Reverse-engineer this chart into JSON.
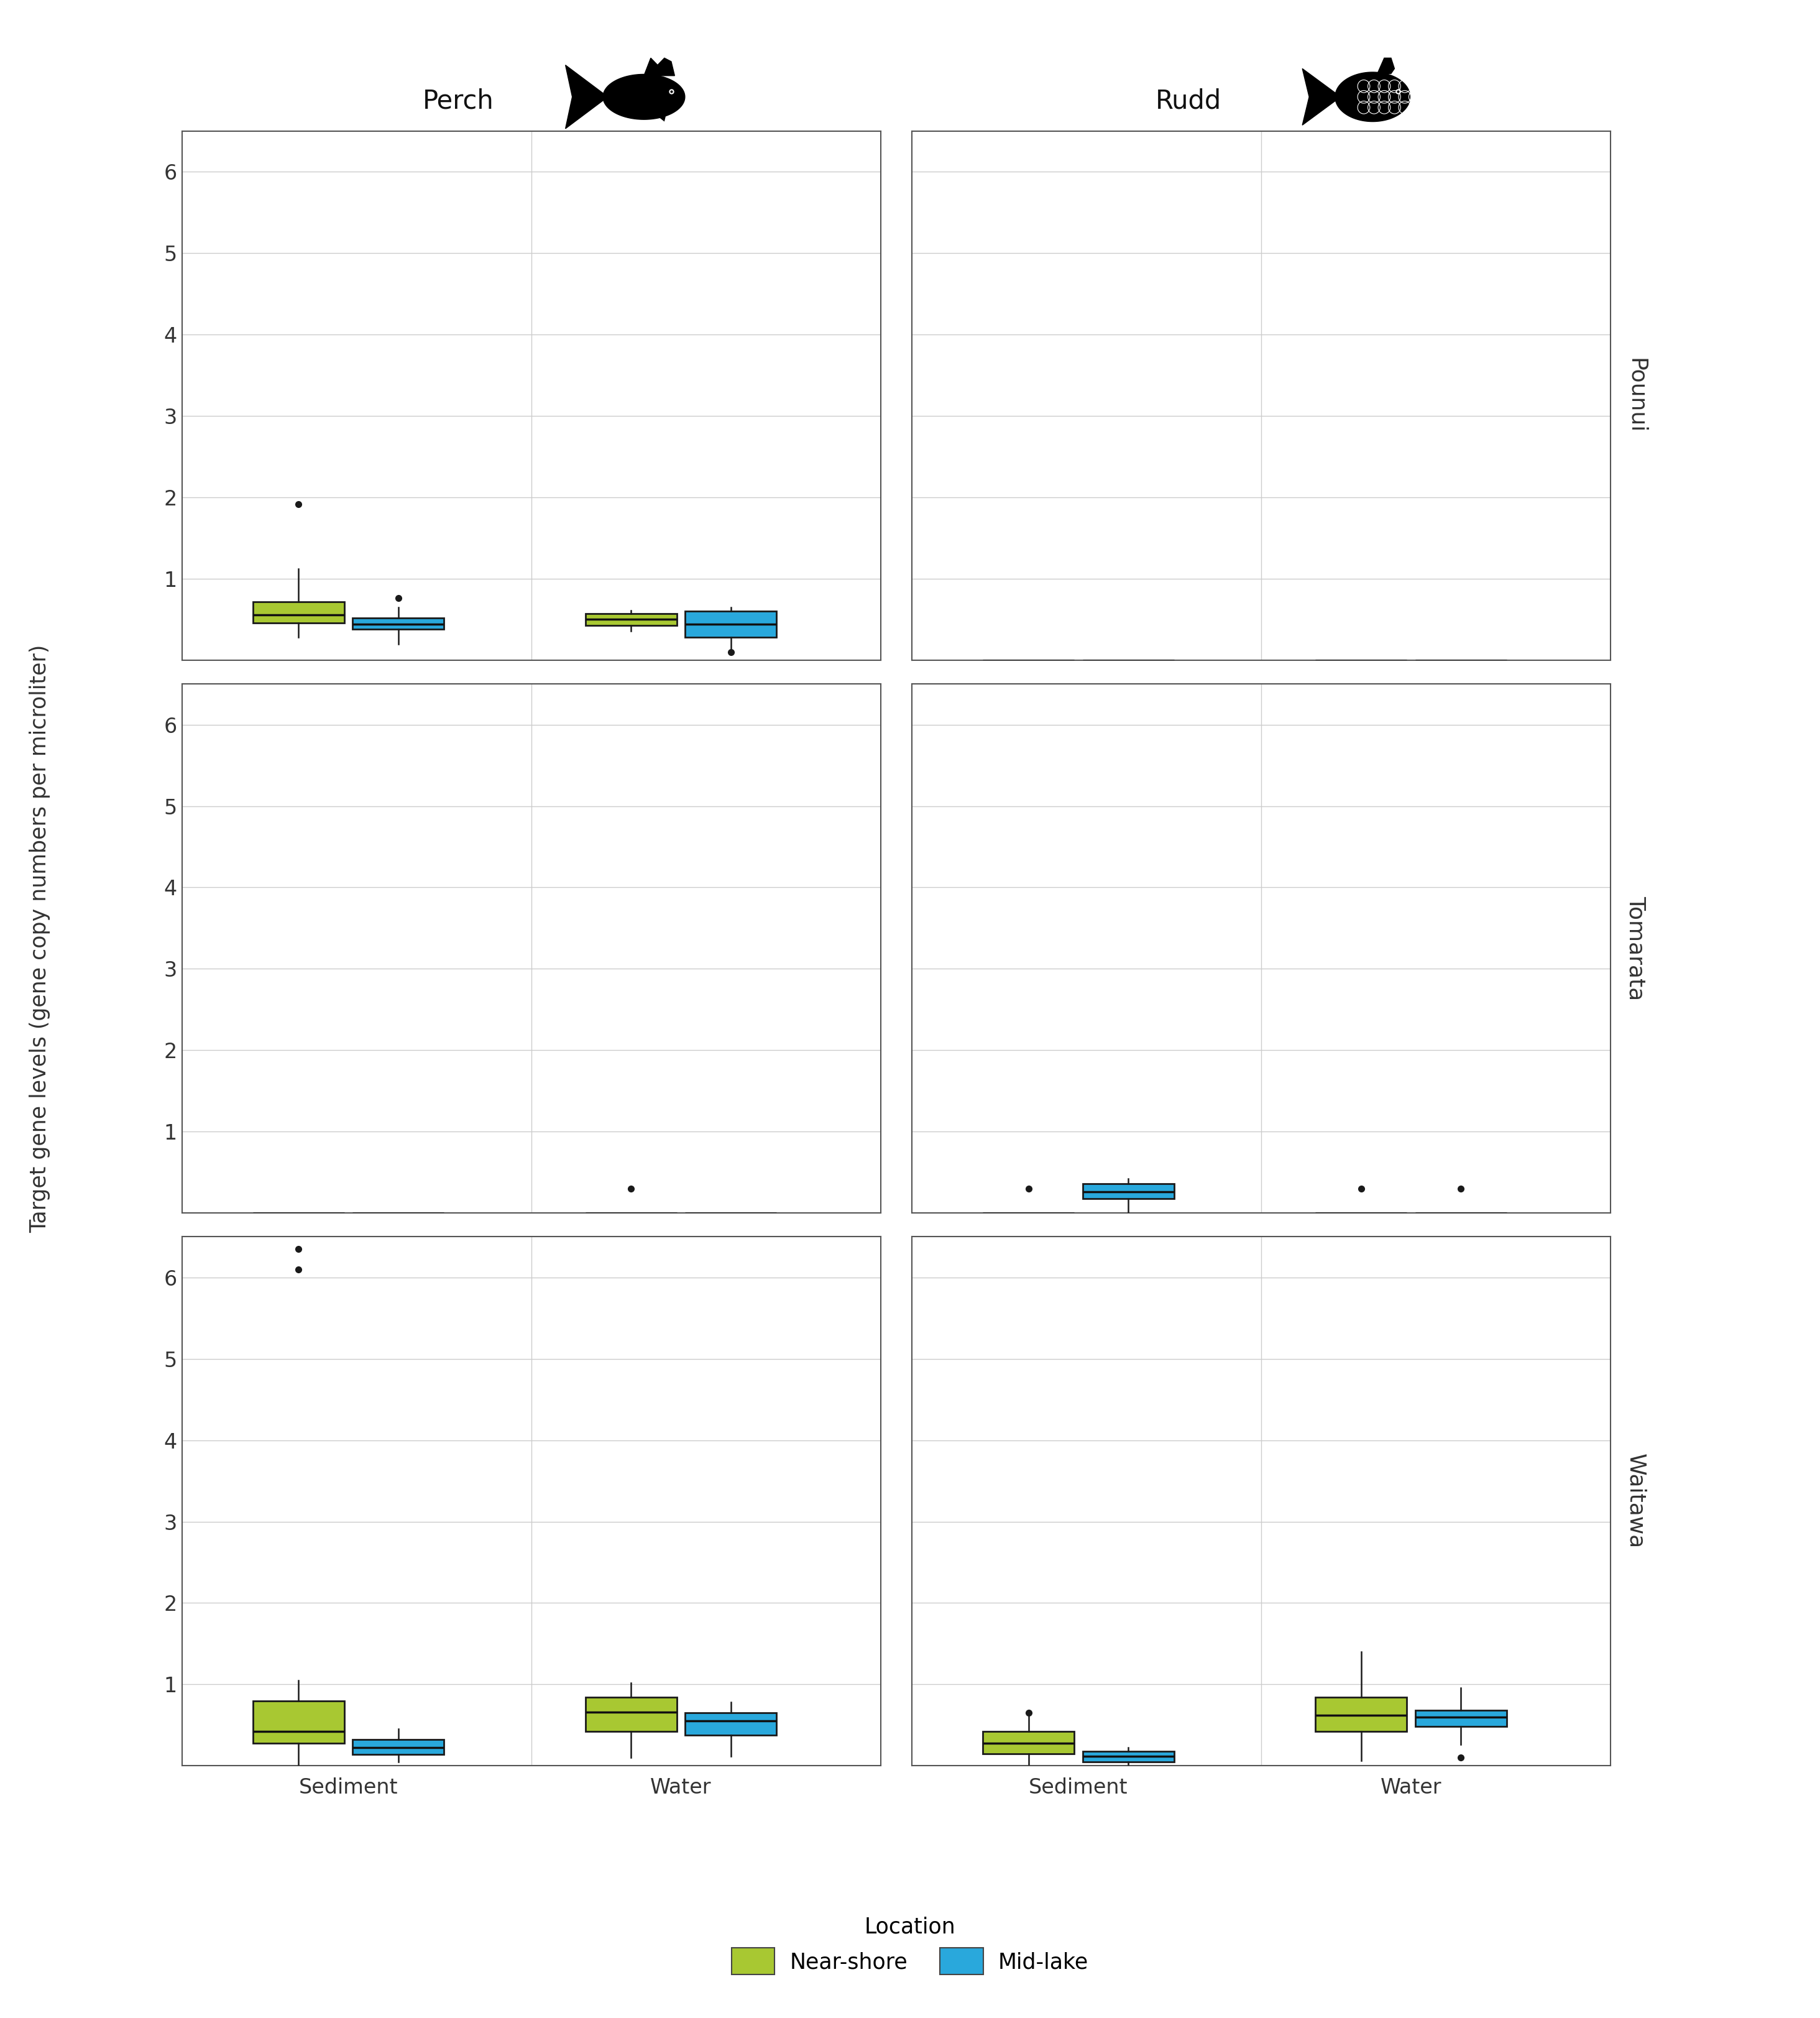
{
  "fish_species": [
    "Perch",
    "Rudd"
  ],
  "lakes": [
    "Pounui",
    "Tomarata",
    "Waitawa"
  ],
  "sample_types": [
    "Sediment",
    "Water"
  ],
  "locations": [
    "Near-shore",
    "Mid-lake"
  ],
  "location_colors": [
    "#a8c832",
    "#29a8dc"
  ],
  "ylabel": "Target gene levels (gene copy numbers per microliter)",
  "legend_title": "Location",
  "ylim": [
    0,
    6.5
  ],
  "yticks": [
    1,
    2,
    3,
    4,
    5,
    6
  ],
  "box_data": {
    "Perch": {
      "Pounui": {
        "Sediment": {
          "Near-shore": {
            "q1": 0.46,
            "median": 0.56,
            "q3": 0.72,
            "whislo": 0.28,
            "whishi": 1.12,
            "fliers": [
              1.92
            ]
          },
          "Mid-lake": {
            "q1": 0.38,
            "median": 0.44,
            "q3": 0.52,
            "whislo": 0.2,
            "whishi": 0.65,
            "fliers": [
              0.76
            ]
          }
        },
        "Water": {
          "Near-shore": {
            "q1": 0.43,
            "median": 0.5,
            "q3": 0.57,
            "whislo": 0.36,
            "whishi": 0.61,
            "fliers": []
          },
          "Mid-lake": {
            "q1": 0.28,
            "median": 0.44,
            "q3": 0.6,
            "whislo": 0.1,
            "whishi": 0.65,
            "fliers": [
              0.1
            ]
          }
        }
      },
      "Tomarata": {
        "Sediment": {
          "Near-shore": {
            "q1": 0.0,
            "median": 0.0,
            "q3": 0.0,
            "whislo": 0.0,
            "whishi": 0.0,
            "fliers": []
          },
          "Mid-lake": {
            "q1": 0.0,
            "median": 0.0,
            "q3": 0.0,
            "whislo": 0.0,
            "whishi": 0.0,
            "fliers": []
          }
        },
        "Water": {
          "Near-shore": {
            "q1": 0.0,
            "median": 0.0,
            "q3": 0.0,
            "whislo": 0.0,
            "whishi": 0.0,
            "fliers": [
              0.3
            ]
          },
          "Mid-lake": {
            "q1": 0.0,
            "median": 0.0,
            "q3": 0.0,
            "whislo": 0.0,
            "whishi": 0.0,
            "fliers": []
          }
        }
      },
      "Waitawa": {
        "Sediment": {
          "Near-shore": {
            "q1": 0.28,
            "median": 0.42,
            "q3": 0.8,
            "whislo": 0.0,
            "whishi": 1.05,
            "fliers": [
              6.35,
              6.1
            ]
          },
          "Mid-lake": {
            "q1": 0.14,
            "median": 0.22,
            "q3": 0.32,
            "whislo": 0.05,
            "whishi": 0.45,
            "fliers": []
          }
        },
        "Water": {
          "Near-shore": {
            "q1": 0.42,
            "median": 0.66,
            "q3": 0.84,
            "whislo": 0.1,
            "whishi": 1.02,
            "fliers": []
          },
          "Mid-lake": {
            "q1": 0.38,
            "median": 0.55,
            "q3": 0.65,
            "whislo": 0.12,
            "whishi": 0.78,
            "fliers": []
          }
        }
      }
    },
    "Rudd": {
      "Pounui": {
        "Sediment": {
          "Near-shore": {
            "q1": 0.0,
            "median": 0.0,
            "q3": 0.0,
            "whislo": 0.0,
            "whishi": 0.0,
            "fliers": []
          },
          "Mid-lake": {
            "q1": 0.0,
            "median": 0.0,
            "q3": 0.0,
            "whislo": 0.0,
            "whishi": 0.0,
            "fliers": []
          }
        },
        "Water": {
          "Near-shore": {
            "q1": 0.0,
            "median": 0.0,
            "q3": 0.0,
            "whislo": 0.0,
            "whishi": 0.0,
            "fliers": []
          },
          "Mid-lake": {
            "q1": 0.0,
            "median": 0.0,
            "q3": 0.0,
            "whislo": 0.0,
            "whishi": 0.0,
            "fliers": []
          }
        }
      },
      "Tomarata": {
        "Sediment": {
          "Near-shore": {
            "q1": 0.0,
            "median": 0.0,
            "q3": 0.0,
            "whislo": 0.0,
            "whishi": 0.0,
            "fliers": [
              0.3
            ]
          },
          "Mid-lake": {
            "q1": 0.18,
            "median": 0.26,
            "q3": 0.36,
            "whislo": 0.0,
            "whishi": 0.42,
            "fliers": []
          }
        },
        "Water": {
          "Near-shore": {
            "q1": 0.0,
            "median": 0.0,
            "q3": 0.0,
            "whislo": 0.0,
            "whishi": 0.0,
            "fliers": [
              0.3
            ]
          },
          "Mid-lake": {
            "q1": 0.0,
            "median": 0.0,
            "q3": 0.0,
            "whislo": 0.0,
            "whishi": 0.0,
            "fliers": [
              0.3
            ]
          }
        }
      },
      "Waitawa": {
        "Sediment": {
          "Near-shore": {
            "q1": 0.15,
            "median": 0.28,
            "q3": 0.42,
            "whislo": 0.02,
            "whishi": 0.62,
            "fliers": [
              0.65
            ]
          },
          "Mid-lake": {
            "q1": 0.05,
            "median": 0.12,
            "q3": 0.18,
            "whislo": 0.0,
            "whishi": 0.22,
            "fliers": []
          }
        },
        "Water": {
          "Near-shore": {
            "q1": 0.42,
            "median": 0.62,
            "q3": 0.84,
            "whislo": 0.06,
            "whishi": 1.4,
            "fliers": []
          },
          "Mid-lake": {
            "q1": 0.48,
            "median": 0.6,
            "q3": 0.68,
            "whislo": 0.26,
            "whishi": 0.96,
            "fliers": [
              0.1
            ]
          }
        }
      }
    }
  }
}
